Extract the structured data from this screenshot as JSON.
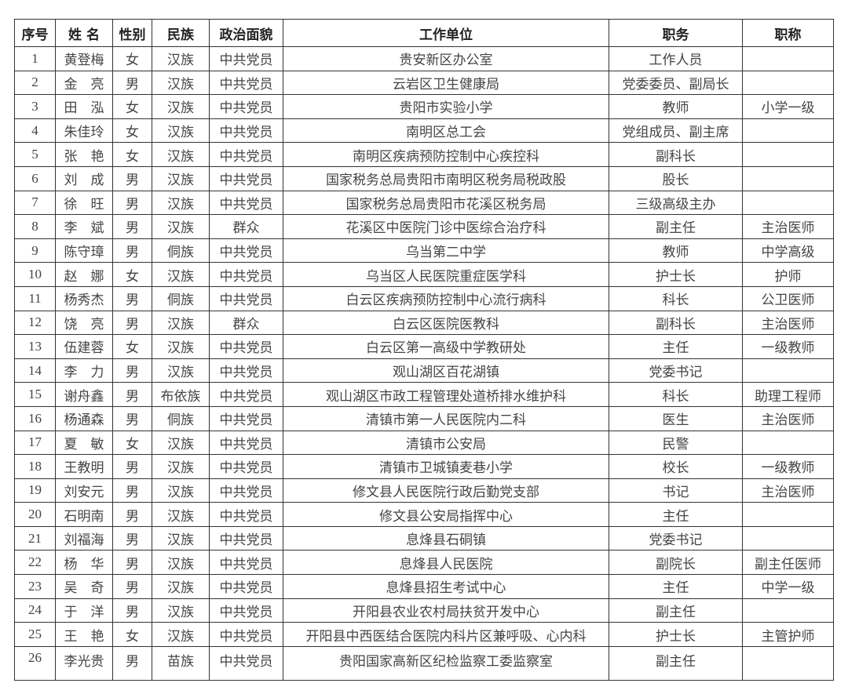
{
  "headers": [
    "序号",
    "姓 名",
    "性别",
    "民族",
    "政治面貌",
    "工作单位",
    "职务",
    "职称"
  ],
  "rows": [
    [
      "1",
      "黄登梅",
      "女",
      "汉族",
      "中共党员",
      "贵安新区办公室",
      "工作人员",
      ""
    ],
    [
      "2",
      "金　亮",
      "男",
      "汉族",
      "中共党员",
      "云岩区卫生健康局",
      "党委委员、副局长",
      ""
    ],
    [
      "3",
      "田　泓",
      "女",
      "汉族",
      "中共党员",
      "贵阳市实验小学",
      "教师",
      "小学一级"
    ],
    [
      "4",
      "朱佳玲",
      "女",
      "汉族",
      "中共党员",
      "南明区总工会",
      "党组成员、副主席",
      ""
    ],
    [
      "5",
      "张　艳",
      "女",
      "汉族",
      "中共党员",
      "南明区疾病预防控制中心疾控科",
      "副科长",
      ""
    ],
    [
      "6",
      "刘　成",
      "男",
      "汉族",
      "中共党员",
      "国家税务总局贵阳市南明区税务局税政股",
      "股长",
      ""
    ],
    [
      "7",
      "徐　旺",
      "男",
      "汉族",
      "中共党员",
      "国家税务总局贵阳市花溪区税务局",
      "三级高级主办",
      ""
    ],
    [
      "8",
      "李　斌",
      "男",
      "汉族",
      "群众",
      "花溪区中医院门诊中医综合治疗科",
      "副主任",
      "主治医师"
    ],
    [
      "9",
      "陈守璋",
      "男",
      "侗族",
      "中共党员",
      "乌当第二中学",
      "教师",
      "中学高级"
    ],
    [
      "10",
      "赵　娜",
      "女",
      "汉族",
      "中共党员",
      "乌当区人民医院重症医学科",
      "护士长",
      "护师"
    ],
    [
      "11",
      "杨秀杰",
      "男",
      "侗族",
      "中共党员",
      "白云区疾病预防控制中心流行病科",
      "科长",
      "公卫医师"
    ],
    [
      "12",
      "饶　亮",
      "男",
      "汉族",
      "群众",
      "白云区医院医教科",
      "副科长",
      "主治医师"
    ],
    [
      "13",
      "伍建蓉",
      "女",
      "汉族",
      "中共党员",
      "白云区第一高级中学教研处",
      "主任",
      "一级教师"
    ],
    [
      "14",
      "李　力",
      "男",
      "汉族",
      "中共党员",
      "观山湖区百花湖镇",
      "党委书记",
      ""
    ],
    [
      "15",
      "谢舟鑫",
      "男",
      "布依族",
      "中共党员",
      "观山湖区市政工程管理处道桥排水维护科",
      "科长",
      "助理工程师"
    ],
    [
      "16",
      "杨通森",
      "男",
      "侗族",
      "中共党员",
      "清镇市第一人民医院内二科",
      "医生",
      "主治医师"
    ],
    [
      "17",
      "夏　敏",
      "女",
      "汉族",
      "中共党员",
      "清镇市公安局",
      "民警",
      ""
    ],
    [
      "18",
      "王教明",
      "男",
      "汉族",
      "中共党员",
      "清镇市卫城镇麦巷小学",
      "校长",
      "一级教师"
    ],
    [
      "19",
      "刘安元",
      "男",
      "汉族",
      "中共党员",
      "修文县人民医院行政后勤党支部",
      "书记",
      "主治医师"
    ],
    [
      "20",
      "石明南",
      "男",
      "汉族",
      "中共党员",
      "修文县公安局指挥中心",
      "主任",
      ""
    ],
    [
      "21",
      "刘福海",
      "男",
      "汉族",
      "中共党员",
      "息烽县石硐镇",
      "党委书记",
      ""
    ],
    [
      "22",
      "杨　华",
      "男",
      "汉族",
      "中共党员",
      "息烽县人民医院",
      "副院长",
      "副主任医师"
    ],
    [
      "23",
      "吴　奇",
      "男",
      "汉族",
      "中共党员",
      "息烽县招生考试中心",
      "主任",
      "中学一级"
    ],
    [
      "24",
      "于　洋",
      "男",
      "汉族",
      "中共党员",
      "开阳县农业农村局扶贫开发中心",
      "副主任",
      ""
    ],
    [
      "25",
      "王　艳",
      "女",
      "汉族",
      "中共党员",
      "开阳县中西医结合医院内科片区兼呼吸、心内科",
      "护士长",
      "主管护师"
    ],
    [
      "26",
      "李光贵",
      "男",
      "苗族",
      "中共党员",
      "贵阳国家高新区纪检监察工委监察室",
      "副主任",
      ""
    ]
  ]
}
